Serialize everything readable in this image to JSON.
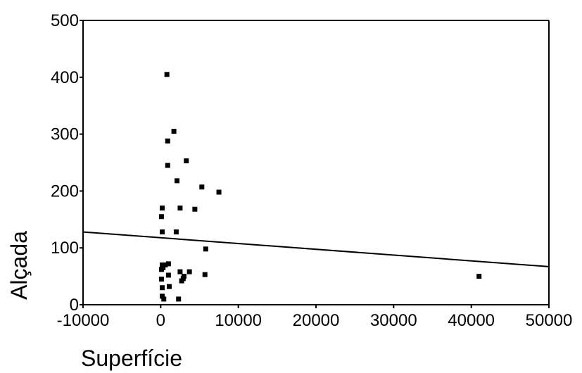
{
  "chart_data": {
    "type": "scatter",
    "title": "",
    "xlabel": "Superfície",
    "ylabel": "Alçada",
    "xlim": [
      -10000,
      50000
    ],
    "ylim": [
      0,
      500
    ],
    "xticks": [
      -10000,
      0,
      10000,
      20000,
      30000,
      40000,
      50000
    ],
    "xtick_labels": [
      "-10000",
      "0",
      "10000",
      "20000",
      "30000",
      "40000",
      "50000"
    ],
    "yticks": [
      0,
      100,
      200,
      300,
      400,
      500
    ],
    "ytick_labels": [
      "0",
      "100",
      "200",
      "300",
      "400",
      "500"
    ],
    "grid": false,
    "points": [
      {
        "x": 800,
        "y": 405
      },
      {
        "x": 1700,
        "y": 305
      },
      {
        "x": 900,
        "y": 288
      },
      {
        "x": 3300,
        "y": 253
      },
      {
        "x": 900,
        "y": 245
      },
      {
        "x": 2100,
        "y": 218
      },
      {
        "x": 5300,
        "y": 207
      },
      {
        "x": 7500,
        "y": 198
      },
      {
        "x": 200,
        "y": 170
      },
      {
        "x": 2500,
        "y": 170
      },
      {
        "x": 4400,
        "y": 168
      },
      {
        "x": 100,
        "y": 155
      },
      {
        "x": 200,
        "y": 128
      },
      {
        "x": 2000,
        "y": 128
      },
      {
        "x": 5800,
        "y": 98
      },
      {
        "x": 1000,
        "y": 72
      },
      {
        "x": 200,
        "y": 70
      },
      {
        "x": 600,
        "y": 70
      },
      {
        "x": 300,
        "y": 65
      },
      {
        "x": 100,
        "y": 62
      },
      {
        "x": 2500,
        "y": 58
      },
      {
        "x": 3700,
        "y": 58
      },
      {
        "x": 5700,
        "y": 53
      },
      {
        "x": 1000,
        "y": 52
      },
      {
        "x": 3000,
        "y": 50
      },
      {
        "x": 2900,
        "y": 46
      },
      {
        "x": 2700,
        "y": 42
      },
      {
        "x": 100,
        "y": 45
      },
      {
        "x": 1100,
        "y": 32
      },
      {
        "x": 200,
        "y": 30
      },
      {
        "x": 200,
        "y": 15
      },
      {
        "x": 400,
        "y": 10
      },
      {
        "x": 2300,
        "y": 10
      },
      {
        "x": 41000,
        "y": 50
      }
    ],
    "fit_line": {
      "x1": -10000,
      "y1": 128,
      "x2": 50000,
      "y2": 67
    }
  }
}
